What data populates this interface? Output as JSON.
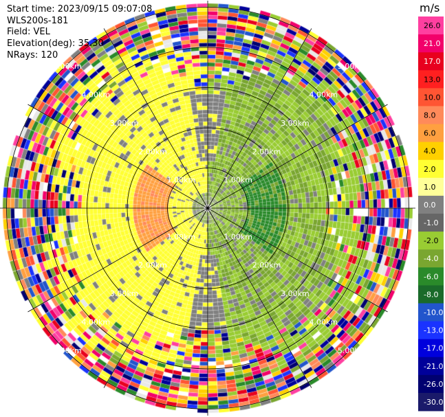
{
  "header": {
    "start_time": "Start time: 2023/09/15 09:07:08",
    "instrument": "WLS200s-181",
    "field": "Field: VEL",
    "elevation": "Elevation(deg): 35.30",
    "nrays": "NRays: 120"
  },
  "chart_data": {
    "type": "heatmap",
    "projection": "polar-ppi",
    "field": "VEL",
    "units": "m/s",
    "nrays": 120,
    "elevation_deg": 35.3,
    "range_rings_km": [
      1.0,
      2.0,
      3.0,
      4.0,
      5.0
    ],
    "ring_labels": [
      "1.00km",
      "2.00km",
      "3.00km",
      "4.00km",
      "5.00km"
    ],
    "max_range_km": 5.1,
    "colorbar": {
      "label": "m/s",
      "ticks": [
        "26.0",
        "21.0",
        "17.0",
        "13.0",
        "10.0",
        "8.0",
        "6.0",
        "4.0",
        "2.0",
        "1.0",
        "0.0",
        "-1.0",
        "-2.0",
        "-4.0",
        "-6.0",
        "-8.0",
        "-10.0",
        "-13.0",
        "-17.0",
        "-21.0",
        "-26.0",
        "-30.0"
      ],
      "colors": [
        "#ff3fa0",
        "#f2006a",
        "#e8001e",
        "#ff2020",
        "#ff5533",
        "#ff8a5a",
        "#ffa040",
        "#ffd000",
        "#ffff33",
        "#ffff99",
        "#808080",
        "#666666",
        "#99cc33",
        "#7aa630",
        "#2a8a2a",
        "#1a6a2a",
        "#2255cc",
        "#1a33ff",
        "#0000dd",
        "#00009a",
        "#000070",
        "#1a1a6a"
      ]
    }
  },
  "palette": {
    "noise": [
      "#ff3fa0",
      "#f2006a",
      "#e8001e",
      "#ff5533",
      "#ff8a5a",
      "#ffa040",
      "#ffd000",
      "#ffff33",
      "#808080",
      "#99cc33",
      "#7aa630",
      "#2a8a2a",
      "#2255cc",
      "#1a33ff",
      "#00009a",
      "#000070",
      "#ffffff",
      "#e8e8e8"
    ],
    "pos_strong": "#ff8a5a",
    "pos_orange": "#ffa040",
    "pos_yellow": "#ffff33",
    "gray": "#808080",
    "neg_light": "#99cc33",
    "neg_mid": "#7aa630",
    "neg_dark": "#2a8a2a"
  }
}
